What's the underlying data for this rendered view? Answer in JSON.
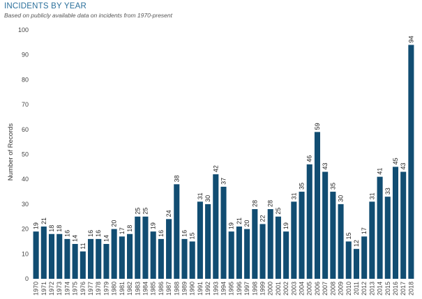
{
  "chart_data": {
    "type": "bar",
    "title": "INCIDENTS BY YEAR",
    "subtitle": "Based on publicly available data on incidents from 1970-present",
    "xlabel": "",
    "ylabel": "Number of Records",
    "ylim": [
      0,
      100
    ],
    "yticks": [
      0,
      10,
      20,
      30,
      40,
      50,
      60,
      70,
      80,
      90,
      100
    ],
    "categories": [
      "1970",
      "1971",
      "1972",
      "1973",
      "1974",
      "1975",
      "1976",
      "1977",
      "1978",
      "1979",
      "1980",
      "1981",
      "1982",
      "1983",
      "1984",
      "1985",
      "1986",
      "1987",
      "1988",
      "1989",
      "1990",
      "1991",
      "1992",
      "1993",
      "1994",
      "1995",
      "1996",
      "1997",
      "1998",
      "1999",
      "2000",
      "2001",
      "2002",
      "2003",
      "2004",
      "2005",
      "2006",
      "2007",
      "2008",
      "2009",
      "2010",
      "2011",
      "2012",
      "2013",
      "2014",
      "2015",
      "2016",
      "2017",
      "2018"
    ],
    "values": [
      19,
      21,
      18,
      18,
      16,
      14,
      11,
      16,
      16,
      14,
      20,
      17,
      18,
      25,
      25,
      19,
      16,
      24,
      38,
      16,
      15,
      31,
      30,
      42,
      37,
      19,
      21,
      20,
      28,
      22,
      28,
      25,
      19,
      31,
      35,
      46,
      59,
      43,
      35,
      30,
      15,
      12,
      17,
      31,
      41,
      33,
      45,
      43,
      94
    ],
    "bar_color": "#114d72",
    "grid": false,
    "legend": "none"
  }
}
